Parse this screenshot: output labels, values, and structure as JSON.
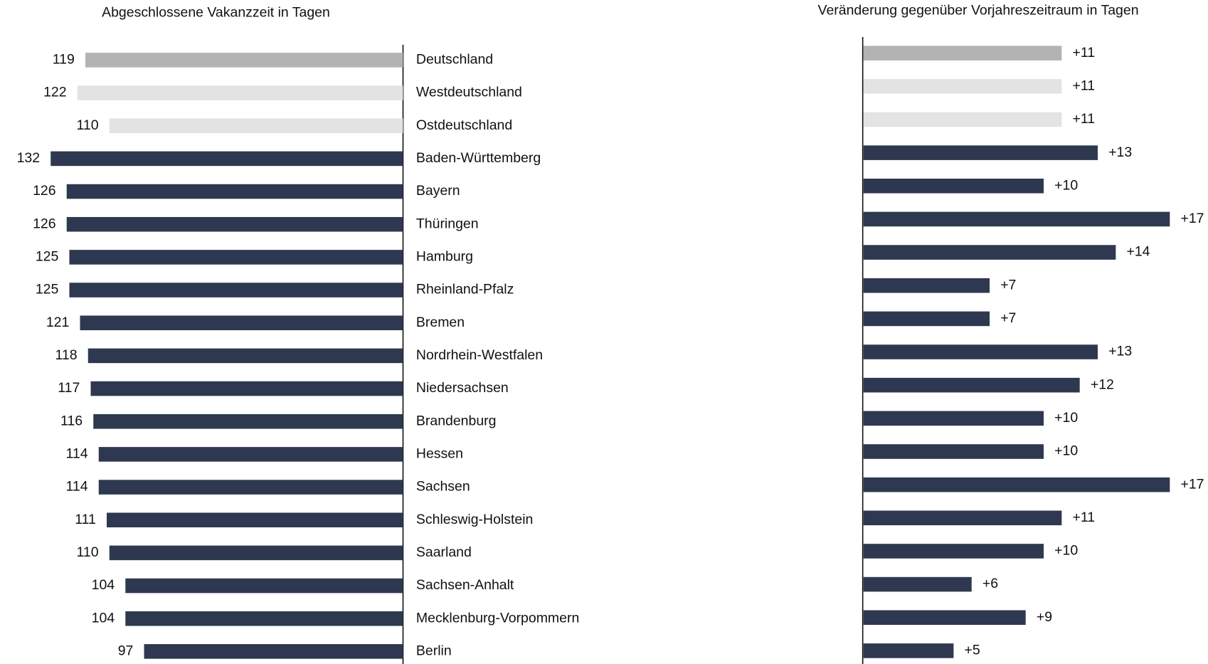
{
  "chart_data": [
    {
      "type": "barh",
      "title": "Abgeschlossene Vakanzzeit in Tagen",
      "categories": [
        "Deutschland",
        "Westdeutschland",
        "Ostdeutschland",
        "Baden-Württemberg",
        "Bayern",
        "Thüringen",
        "Hamburg",
        "Rheinland-Pfalz",
        "Bremen",
        "Nordrhein-Westfalen",
        "Niedersachsen",
        "Brandenburg",
        "Hessen",
        "Sachsen",
        "Schleswig-Holstein",
        "Saarland",
        "Sachsen-Anhalt",
        "Mecklenburg-Vorpommern",
        "Berlin"
      ],
      "values": [
        119,
        122,
        110,
        132,
        126,
        126,
        125,
        125,
        121,
        118,
        117,
        116,
        114,
        114,
        111,
        110,
        104,
        104,
        97
      ],
      "colors": [
        "#b3b3b3",
        "#e3e3e3",
        "#e3e3e3",
        "#2e3850",
        "#2e3850",
        "#2e3850",
        "#2e3850",
        "#2e3850",
        "#2e3850",
        "#2e3850",
        "#2e3850",
        "#2e3850",
        "#2e3850",
        "#2e3850",
        "#2e3850",
        "#2e3850",
        "#2e3850",
        "#2e3850",
        "#2e3850"
      ],
      "xlim": [
        0,
        150
      ],
      "direction": "left"
    },
    {
      "type": "barh",
      "title": "Veränderung gegenüber Vorjahreszeitraum in Tagen",
      "values": [
        11,
        11,
        11,
        13,
        10,
        17,
        14,
        7,
        7,
        13,
        12,
        10,
        10,
        17,
        11,
        10,
        6,
        9,
        5
      ],
      "value_labels": [
        "+11",
        "+11",
        "+11",
        "+13",
        "+10",
        "+17",
        "+14",
        "+7",
        "+7",
        "+13",
        "+12",
        "+10",
        "+10",
        "+17",
        "+11",
        "+10",
        "+6",
        "+9",
        "+5"
      ],
      "colors": [
        "#b3b3b3",
        "#e3e3e3",
        "#e3e3e3",
        "#2e3850",
        "#2e3850",
        "#2e3850",
        "#2e3850",
        "#2e3850",
        "#2e3850",
        "#2e3850",
        "#2e3850",
        "#2e3850",
        "#2e3850",
        "#2e3850",
        "#2e3850",
        "#2e3850",
        "#2e3850",
        "#2e3850",
        "#2e3850"
      ],
      "xlim": [
        0,
        20
      ],
      "direction": "right"
    }
  ]
}
